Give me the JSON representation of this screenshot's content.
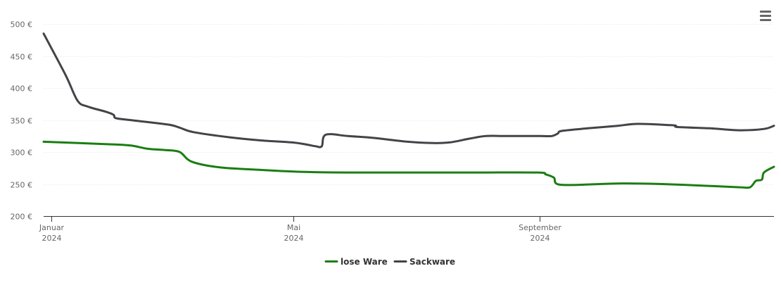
{
  "menu": {
    "icon": "hamburger-menu-icon"
  },
  "chart_data": {
    "type": "line",
    "title": "",
    "xlabel": "",
    "ylabel": "",
    "ylim": [
      200,
      500
    ],
    "y_ticks": [
      {
        "value": 200,
        "label": "200 €"
      },
      {
        "value": 250,
        "label": "250 €"
      },
      {
        "value": 300,
        "label": "300 €"
      },
      {
        "value": 350,
        "label": "350 €"
      },
      {
        "value": 400,
        "label": "400 €"
      },
      {
        "value": 450,
        "label": "450 €"
      },
      {
        "value": 500,
        "label": "500 €"
      }
    ],
    "xlim": [
      "2023-12-28",
      "2024-12-27"
    ],
    "x_ticks": [
      {
        "date": "2024-01-01",
        "month": "Januar",
        "year": "2024"
      },
      {
        "date": "2024-05-01",
        "month": "Mai",
        "year": "2024"
      },
      {
        "date": "2024-09-01",
        "month": "September",
        "year": "2024"
      }
    ],
    "grid": true,
    "legend_position": "bottom-center",
    "series": [
      {
        "name": "lose Ware",
        "color": "#1a7e12",
        "points": [
          [
            "2023-12-28",
            316
          ],
          [
            "2024-01-31",
            312
          ],
          [
            "2024-02-10",
            310
          ],
          [
            "2024-02-18",
            305
          ],
          [
            "2024-02-27",
            303
          ],
          [
            "2024-03-05",
            300
          ],
          [
            "2024-03-11",
            285
          ],
          [
            "2024-03-25",
            276
          ],
          [
            "2024-04-15",
            272
          ],
          [
            "2024-05-06",
            269
          ],
          [
            "2024-06-01",
            268
          ],
          [
            "2024-07-01",
            268
          ],
          [
            "2024-08-01",
            268
          ],
          [
            "2024-08-31",
            268
          ],
          [
            "2024-09-04",
            265
          ],
          [
            "2024-09-08",
            260
          ],
          [
            "2024-09-11",
            249
          ],
          [
            "2024-10-01",
            250
          ],
          [
            "2024-10-13",
            251
          ],
          [
            "2024-11-01",
            250
          ],
          [
            "2024-11-25",
            247
          ],
          [
            "2024-12-10",
            245
          ],
          [
            "2024-12-15",
            245
          ],
          [
            "2024-12-18",
            255
          ],
          [
            "2024-12-21",
            257
          ],
          [
            "2024-12-22",
            268
          ],
          [
            "2024-12-27",
            277
          ]
        ]
      },
      {
        "name": "Sackware",
        "color": "#434348",
        "points": [
          [
            "2023-12-28",
            485
          ],
          [
            "2024-01-08",
            420
          ],
          [
            "2024-01-14",
            380
          ],
          [
            "2024-01-19",
            371
          ],
          [
            "2024-01-28",
            363
          ],
          [
            "2024-02-01",
            358
          ],
          [
            "2024-02-02",
            353
          ],
          [
            "2024-02-09",
            350
          ],
          [
            "2024-02-28",
            343
          ],
          [
            "2024-03-05",
            338
          ],
          [
            "2024-03-12",
            331
          ],
          [
            "2024-03-30",
            323
          ],
          [
            "2024-04-15",
            318
          ],
          [
            "2024-04-30",
            315
          ],
          [
            "2024-05-07",
            312
          ],
          [
            "2024-05-12",
            309
          ],
          [
            "2024-05-15",
            309
          ],
          [
            "2024-05-17",
            327
          ],
          [
            "2024-05-28",
            325
          ],
          [
            "2024-06-10",
            322
          ],
          [
            "2024-06-27",
            316
          ],
          [
            "2024-07-10",
            314
          ],
          [
            "2024-07-18",
            315
          ],
          [
            "2024-07-28",
            321
          ],
          [
            "2024-08-05",
            325
          ],
          [
            "2024-08-15",
            325
          ],
          [
            "2024-09-01",
            325
          ],
          [
            "2024-09-07",
            325
          ],
          [
            "2024-09-10",
            329
          ],
          [
            "2024-09-12",
            333
          ],
          [
            "2024-09-25",
            337
          ],
          [
            "2024-10-10",
            341
          ],
          [
            "2024-10-20",
            344
          ],
          [
            "2024-11-05",
            342
          ],
          [
            "2024-11-08",
            341
          ],
          [
            "2024-11-09",
            339
          ],
          [
            "2024-11-25",
            337
          ],
          [
            "2024-12-10",
            334
          ],
          [
            "2024-12-22",
            336
          ],
          [
            "2024-12-27",
            341
          ]
        ]
      }
    ]
  }
}
